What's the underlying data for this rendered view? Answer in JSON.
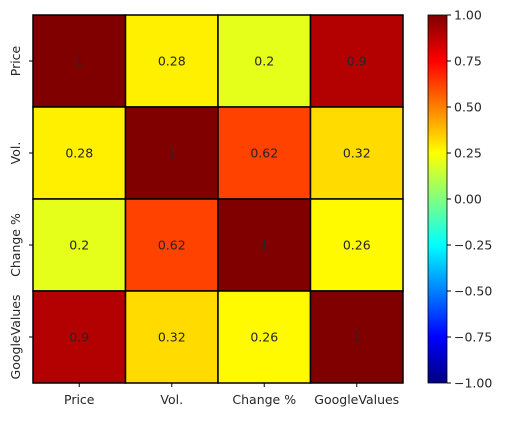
{
  "chart_data": {
    "type": "heatmap",
    "colormap": "jet",
    "x_labels": [
      "Price",
      "Vol.",
      "Change %",
      "GoogleValues"
    ],
    "y_labels": [
      "Price",
      "Vol.",
      "Change %",
      "GoogleValues"
    ],
    "matrix": [
      [
        1,
        0.28,
        0.2,
        0.9
      ],
      [
        0.28,
        1,
        0.62,
        0.32
      ],
      [
        0.2,
        0.62,
        1,
        0.26
      ],
      [
        0.9,
        0.32,
        0.26,
        1
      ]
    ],
    "cell_labels": [
      [
        "1",
        "0.28",
        "0.2",
        "0.9"
      ],
      [
        "0.28",
        "1",
        "0.62",
        "0.32"
      ],
      [
        "0.2",
        "0.62",
        "1",
        "0.26"
      ],
      [
        "0.9",
        "0.32",
        "0.26",
        "1"
      ]
    ],
    "colorbar": {
      "vmin": -1,
      "vmax": 1,
      "ticks": [
        1,
        0.75,
        0.5,
        0.25,
        0,
        -0.25,
        -0.5,
        -0.75,
        -1
      ],
      "tick_labels": [
        "1.00",
        "0.75",
        "0.50",
        "0.25",
        "0.00",
        "−0.25",
        "−0.50",
        "−0.75",
        "−1.00"
      ]
    },
    "cell_border_color": "#000000",
    "annotation_color": "#262626",
    "legend_position": "right"
  }
}
